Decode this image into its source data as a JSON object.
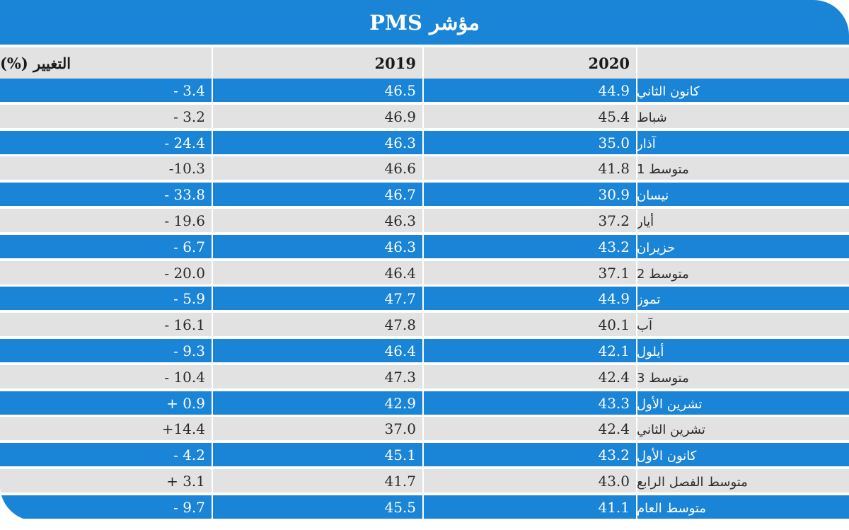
{
  "title": "مؤشر PMS",
  "headers": {
    "month": "",
    "y2020": "2020",
    "y2019": "2019",
    "change": "التغيير (%)"
  },
  "rows": [
    {
      "month": "كانون الثاني",
      "y2020": "44.9",
      "y2019": "46.5",
      "change": "- 3.4"
    },
    {
      "month": "شباط",
      "y2020": "45.4",
      "y2019": "46.9",
      "change": "- 3.2"
    },
    {
      "month": "آذار",
      "y2020": "35.0",
      "y2019": "46.3",
      "change": "- 24.4"
    },
    {
      "month": "متوسط 1",
      "y2020": "41.8",
      "y2019": "46.6",
      "change": "-10.3"
    },
    {
      "month": "نيسان",
      "y2020": "30.9",
      "y2019": "46.7",
      "change": "- 33.8"
    },
    {
      "month": "أيار",
      "y2020": "37.2",
      "y2019": "46.3",
      "change": "- 19.6"
    },
    {
      "month": "حزيران",
      "y2020": "43.2",
      "y2019": "46.3",
      "change": "- 6.7"
    },
    {
      "month": "متوسط 2",
      "y2020": "37.1",
      "y2019": "46.4",
      "change": "- 20.0"
    },
    {
      "month": "تموز",
      "y2020": "44.9",
      "y2019": "47.7",
      "change": "- 5.9"
    },
    {
      "month": "آب",
      "y2020": "40.1",
      "y2019": "47.8",
      "change": "- 16.1"
    },
    {
      "month": "أيلول",
      "y2020": "42.1",
      "y2019": "46.4",
      "change": "- 9.3"
    },
    {
      "month": "متوسط 3",
      "y2020": "42.4",
      "y2019": "47.3",
      "change": "- 10.4"
    },
    {
      "month": "تشرين الأول",
      "y2020": "43.3",
      "y2019": "42.9",
      "change": "+ 0.9"
    },
    {
      "month": "تشرين الثاني",
      "y2020": "42.4",
      "y2019": "37.0",
      "change": "+14.4"
    },
    {
      "month": "كانون الأول",
      "y2020": "43.2",
      "y2019": "45.1",
      "change": "- 4.2"
    },
    {
      "month": "متوسط الفصل الرابع",
      "y2020": "43.0",
      "y2019": "41.7",
      "change": "+ 3.1"
    },
    {
      "month": "متوسط العام",
      "y2020": "41.1",
      "y2019": "45.5",
      "change": "- 9.7"
    }
  ],
  "colors": {
    "blue_band": "#1a84d6",
    "grey_band": "#e2e2e2",
    "text_on_blue": "#ffffff",
    "text_on_grey": "#2a2a2a"
  }
}
